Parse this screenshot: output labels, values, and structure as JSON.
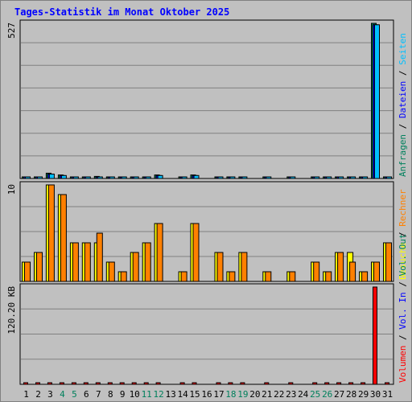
{
  "chart_data": {
    "type": "bar",
    "title": "Tages-Statistik im Monat Oktober 2025",
    "x": [
      "1",
      "2",
      "3",
      "4",
      "5",
      "6",
      "7",
      "8",
      "9",
      "10",
      "11",
      "12",
      "13",
      "14",
      "15",
      "16",
      "17",
      "18",
      "19",
      "20",
      "21",
      "22",
      "23",
      "24",
      "25",
      "26",
      "27",
      "28",
      "29",
      "30",
      "31"
    ],
    "weekend_days": [
      "4",
      "5",
      "11",
      "12",
      "18",
      "19",
      "25",
      "26"
    ],
    "panels": [
      {
        "name": "requests",
        "ymax_label": "527",
        "ymax": 527,
        "legend": [
          {
            "label": "Anfragen",
            "color": "#00805c"
          },
          {
            "sep": "/"
          },
          {
            "label": "Dateien",
            "color": "#0000ff"
          },
          {
            "sep": "/"
          },
          {
            "label": "Seiten",
            "color": "#00c0ff"
          }
        ],
        "series": [
          {
            "name": "Anfragen",
            "color": "#00805c",
            "values": [
              3,
              5,
              18,
              12,
              5,
              5,
              7,
              3,
              3,
              5,
              5,
              12,
              0,
              5,
              12,
              0,
              5,
              3,
              5,
              0,
              3,
              0,
              3,
              0,
              3,
              3,
              5,
              5,
              3,
              527,
              5
            ]
          },
          {
            "name": "Dateien",
            "color": "#0000ff",
            "values": [
              2,
              4,
              15,
              10,
              4,
              4,
              5,
              2,
              2,
              4,
              4,
              10,
              0,
              4,
              10,
              0,
              4,
              2,
              4,
              0,
              2,
              0,
              2,
              0,
              2,
              2,
              4,
              4,
              2,
              522,
              4
            ]
          },
          {
            "name": "Seiten",
            "color": "#00c0ff",
            "values": [
              2,
              4,
              15,
              10,
              4,
              4,
              5,
              2,
              2,
              4,
              4,
              10,
              0,
              4,
              10,
              0,
              4,
              2,
              4,
              0,
              2,
              0,
              2,
              0,
              2,
              2,
              4,
              4,
              2,
              522,
              4
            ]
          }
        ]
      },
      {
        "name": "visits",
        "ymax_label": "10",
        "ymax": 10,
        "legend": [
          {
            "label": "Besuche",
            "color": "#ffff00"
          },
          {
            "sep": "/"
          },
          {
            "label": "Rechner",
            "color": "#ff8000"
          }
        ],
        "series": [
          {
            "name": "Besuche",
            "color": "#ffff00",
            "values": [
              2,
              3,
              10,
              9,
              4,
              4,
              4,
              2,
              1,
              3,
              4,
              6,
              0,
              1,
              6,
              0,
              3,
              1,
              3,
              0,
              1,
              0,
              1,
              0,
              2,
              1,
              3,
              3,
              1,
              2,
              4
            ]
          },
          {
            "name": "Rechner",
            "color": "#ff8000",
            "values": [
              2,
              3,
              10,
              9,
              4,
              4,
              5,
              2,
              1,
              3,
              4,
              6,
              0,
              1,
              6,
              0,
              3,
              1,
              3,
              0,
              1,
              0,
              1,
              0,
              2,
              1,
              3,
              2,
              1,
              2,
              4
            ]
          }
        ]
      },
      {
        "name": "volume",
        "ymax_label": "120.20 KB",
        "ymax": 120.2,
        "legend": [
          {
            "label": "Volumen",
            "color": "#ff0000"
          },
          {
            "sep": "/"
          },
          {
            "label": "Vol. In",
            "color": "#0000ff"
          },
          {
            "sep": "/"
          },
          {
            "label": "Vol. Out",
            "color": "#00805c"
          }
        ],
        "series": [
          {
            "name": "Volumen",
            "color": "#ff0000",
            "values": [
              1,
              1,
              2,
              1,
              1,
              1,
              2,
              1,
              1,
              1,
              1,
              1,
              0,
              2,
              2,
              0,
              1,
              1,
              1,
              0,
              1,
              0,
              1,
              0,
              1,
              1,
              1,
              1,
              1,
              120.2,
              1
            ]
          }
        ]
      }
    ]
  },
  "colors": {
    "background": "#c0c0c0",
    "title": "#0000ff",
    "weekday": "#000000",
    "weekend": "#00805c",
    "separator": "#000000",
    "axis_label": "#000000"
  }
}
